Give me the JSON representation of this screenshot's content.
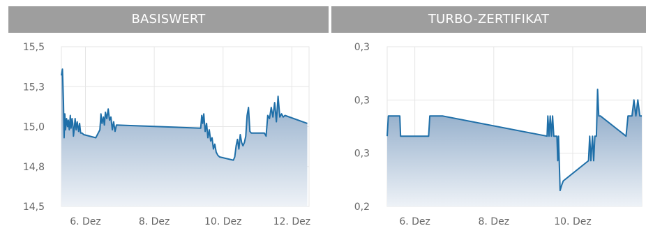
{
  "panels": {
    "left_title": "BASISWERT",
    "right_title": "TURBO-ZERTIFIKAT"
  },
  "colors": {
    "line": "#1f6fa8",
    "area_top": "#7f9fc1",
    "area_bottom": "#eef2f7",
    "header_bg": "#9e9e9e",
    "grid": "#e6e6e6"
  },
  "chart_data": [
    {
      "type": "area",
      "title": "BASISWERT",
      "xlabel": "",
      "ylabel": "",
      "x_unit": "day of December",
      "xlim": [
        5.3,
        12.5
      ],
      "ylim": [
        14.5,
        15.5
      ],
      "grid": true,
      "y_ticks": [
        15.5,
        15.25,
        15.0,
        14.75,
        14.5
      ],
      "y_tick_labels": [
        "15,5",
        "15,3",
        "15,0",
        "14,8",
        "14,5"
      ],
      "x_ticks": [
        6,
        8,
        10,
        12
      ],
      "x_tick_labels": [
        "6. Dez",
        "8. Dez",
        "10. Dez",
        "12. Dez"
      ],
      "series": [
        {
          "x": [
            5.3,
            5.33,
            5.36,
            5.38,
            5.4,
            5.42,
            5.45,
            5.48,
            5.5,
            5.53,
            5.56,
            5.58,
            5.61,
            5.63,
            5.65,
            5.68,
            5.7,
            5.73,
            5.76,
            5.8,
            5.83,
            5.86,
            5.9,
            5.95,
            6.3,
            6.42,
            6.45,
            6.48,
            6.52,
            6.55,
            6.58,
            6.62,
            6.66,
            6.7,
            6.74,
            6.78,
            6.82,
            6.86,
            6.9,
            9.35,
            9.38,
            9.41,
            9.44,
            9.48,
            9.52,
            9.56,
            9.6,
            9.64,
            9.68,
            9.72,
            9.76,
            9.8,
            9.85,
            9.9,
            10.3,
            10.34,
            10.38,
            10.42,
            10.46,
            10.5,
            10.54,
            10.58,
            10.62,
            10.66,
            10.7,
            10.74,
            10.78,
            10.82,
            11.2,
            11.25,
            11.3,
            11.35,
            11.4,
            11.45,
            11.5,
            11.55,
            11.6,
            11.65,
            11.7,
            11.75,
            11.8,
            12.45
          ],
          "y": [
            15.32,
            15.36,
            15.15,
            14.93,
            15.08,
            14.98,
            15.05,
            15.0,
            15.04,
            14.98,
            15.07,
            14.99,
            15.05,
            15.02,
            14.94,
            15.0,
            15.05,
            14.98,
            15.03,
            14.97,
            15.02,
            14.96,
            14.96,
            14.95,
            14.93,
            14.98,
            15.08,
            15.02,
            15.06,
            15.01,
            15.09,
            15.05,
            15.11,
            15.04,
            15.06,
            14.98,
            15.03,
            14.97,
            15.01,
            14.99,
            15.07,
            15.02,
            15.08,
            14.97,
            15.02,
            14.93,
            14.98,
            14.91,
            14.93,
            14.86,
            14.89,
            14.84,
            14.82,
            14.81,
            14.79,
            14.81,
            14.88,
            14.92,
            14.86,
            14.95,
            14.9,
            14.88,
            14.9,
            14.94,
            15.07,
            15.12,
            14.97,
            14.96,
            14.96,
            14.94,
            15.07,
            15.05,
            15.12,
            15.06,
            15.15,
            15.03,
            15.19,
            15.06,
            15.08,
            15.06,
            15.07,
            15.02
          ]
        }
      ]
    },
    {
      "type": "area",
      "title": "TURBO-ZERTIFIKAT",
      "xlabel": "",
      "ylabel": "",
      "x_unit": "day of December",
      "xlim": [
        5.3,
        11.75
      ],
      "ylim": [
        0.2,
        0.35
      ],
      "grid": true,
      "y_ticks": [
        0.35,
        0.3,
        0.25,
        0.2
      ],
      "y_tick_labels": [
        "0,3",
        "0,3",
        "0,3",
        "0,2"
      ],
      "x_ticks": [
        6,
        8,
        10
      ],
      "x_tick_labels": [
        "6. Dez",
        "8. Dez",
        "10. Dez"
      ],
      "series": [
        {
          "x": [
            5.3,
            5.33,
            5.36,
            5.62,
            5.64,
            5.66,
            6.35,
            6.38,
            6.7,
            9.35,
            9.37,
            9.4,
            9.43,
            9.46,
            9.49,
            9.52,
            9.55,
            9.6,
            9.62,
            9.64,
            9.68,
            9.72,
            9.76,
            10.4,
            10.43,
            10.46,
            10.5,
            10.53,
            10.56,
            10.6,
            10.63,
            10.66,
            10.7,
            11.35,
            11.4,
            11.45,
            11.5,
            11.55,
            11.6,
            11.65,
            11.7,
            11.75
          ],
          "y": [
            0.266,
            0.285,
            0.285,
            0.285,
            0.266,
            0.266,
            0.266,
            0.285,
            0.285,
            0.266,
            0.285,
            0.266,
            0.285,
            0.266,
            0.285,
            0.266,
            0.266,
            0.266,
            0.243,
            0.266,
            0.215,
            0.22,
            0.224,
            0.243,
            0.266,
            0.243,
            0.266,
            0.243,
            0.266,
            0.266,
            0.31,
            0.285,
            0.285,
            0.266,
            0.285,
            0.285,
            0.285,
            0.3,
            0.285,
            0.3,
            0.285,
            0.285
          ]
        }
      ]
    }
  ]
}
